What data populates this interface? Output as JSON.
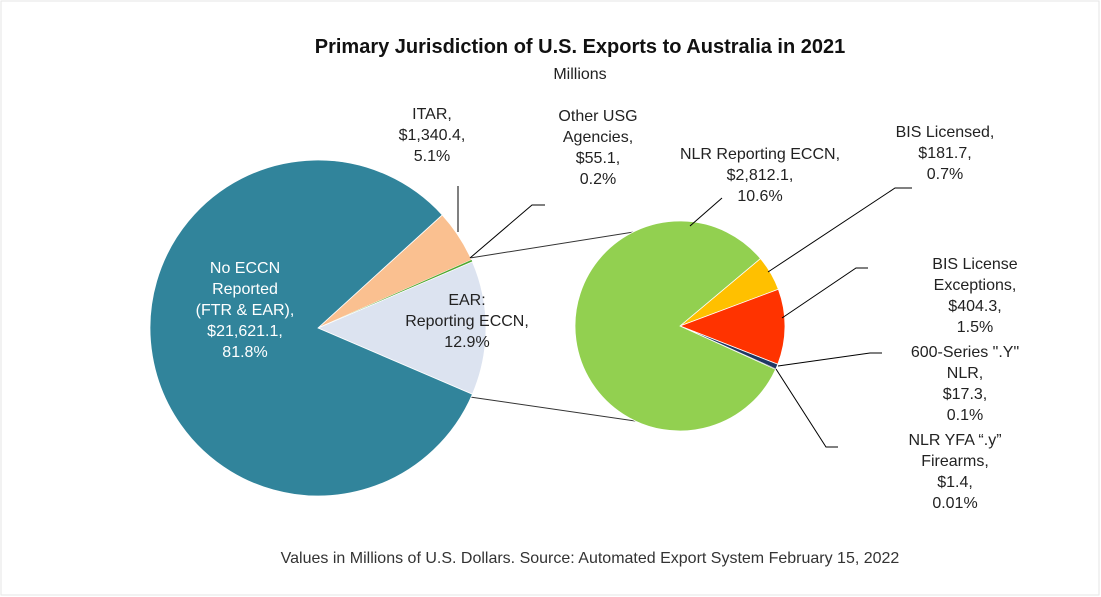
{
  "chart_data": {
    "type": "pie",
    "title": "Primary Jurisdiction of U.S. Exports to Australia in 2021",
    "subtitle": "Millions",
    "footnote": "Values in Millions of U.S. Dollars.  Source: Automated Export System February 15, 2022",
    "pies": [
      {
        "categories": [
          "No ECCN\nReported\n(FTR & EAR),",
          "ITAR,",
          "Other USG\nAgencies,",
          "EAR:\nReporting ECCN,"
        ],
        "values": [
          81.8,
          5.1,
          0.2,
          12.9
        ],
        "value_labels": [
          "81.8%",
          "5.1%",
          "0.2%",
          "12.9%"
        ],
        "amounts": [
          21621.1,
          1340.4,
          55.1,
          null
        ],
        "amount_labels": [
          "$21,621.1,",
          "$1,340.4,",
          "$55.1,",
          null
        ],
        "colors": [
          "#31849b",
          "#fac090",
          "#4ea72e",
          "#dce3f0"
        ]
      },
      {
        "categories": [
          "NLR Reporting ECCN,",
          "BIS Licensed,",
          "BIS License Exceptions,",
          "600-Series \".Y\" NLR,",
          "NLR YFA “.y” Firearms,"
        ],
        "values": [
          10.6,
          0.7,
          1.5,
          0.1,
          0.01
        ],
        "value_labels": [
          "10.6%",
          "0.7%",
          "1.5%",
          "0.1%",
          "0.01%"
        ],
        "amounts": [
          2812.1,
          181.7,
          404.3,
          17.3,
          1.4
        ],
        "amount_labels": [
          "$2,812.1,",
          "$181.7,",
          "$404.3,",
          "$17.3,",
          "$1.4,"
        ],
        "colors": [
          "#92d050",
          "#ffc000",
          "#ff3300",
          "#1f3864",
          "#000000"
        ]
      }
    ]
  }
}
